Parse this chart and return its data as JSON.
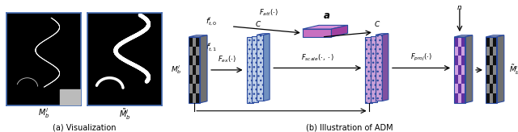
{
  "fig_width": 6.4,
  "fig_height": 1.64,
  "dpi": 100,
  "bg_color": "#ffffff",
  "left_panel_caption": "(a) Visualization",
  "right_panel_caption": "(b) Illustration of ADM",
  "label_Mb": "$M_b^l$",
  "label_Mb_tilde": "$\\tilde{M}_b^l$",
  "label_ft0": "$f_{t,0}^l$",
  "label_ft1": "$f_{t,1}^l$",
  "label_a": "$\\boldsymbol{a}$",
  "label_n": "$n$",
  "label_Fatt": "$F_{att}(\\cdot)$",
  "label_Fex": "$F_{ex}(\\cdot)$",
  "label_Fscale": "$F_{scale}(\\cdot,\\cdot)$",
  "label_Fproj": "$F_{proj}(\\cdot)$",
  "label_C1": "$C$",
  "label_C2": "$C$",
  "border_blue": "#4169b0",
  "dark_blue_ec": "#2a4a9f",
  "fc_blue_front": "#c0d0e8",
  "fc_blue_top": "#d8e8f8",
  "fc_blue_side": "#7090c0",
  "fc_purp_front": "#c8a0d8",
  "fc_purp_top": "#d8b8e8",
  "fc_purp_side": "#8050a0",
  "fc_att_front": "#c870c0",
  "fc_att_top": "#d890d8",
  "fc_att_side": "#a040a0",
  "checker_dark": "#111111",
  "checker_mid": "#888888",
  "checker_purp_dark": "#6030a0",
  "checker_purp_light": "#d0a0e0"
}
